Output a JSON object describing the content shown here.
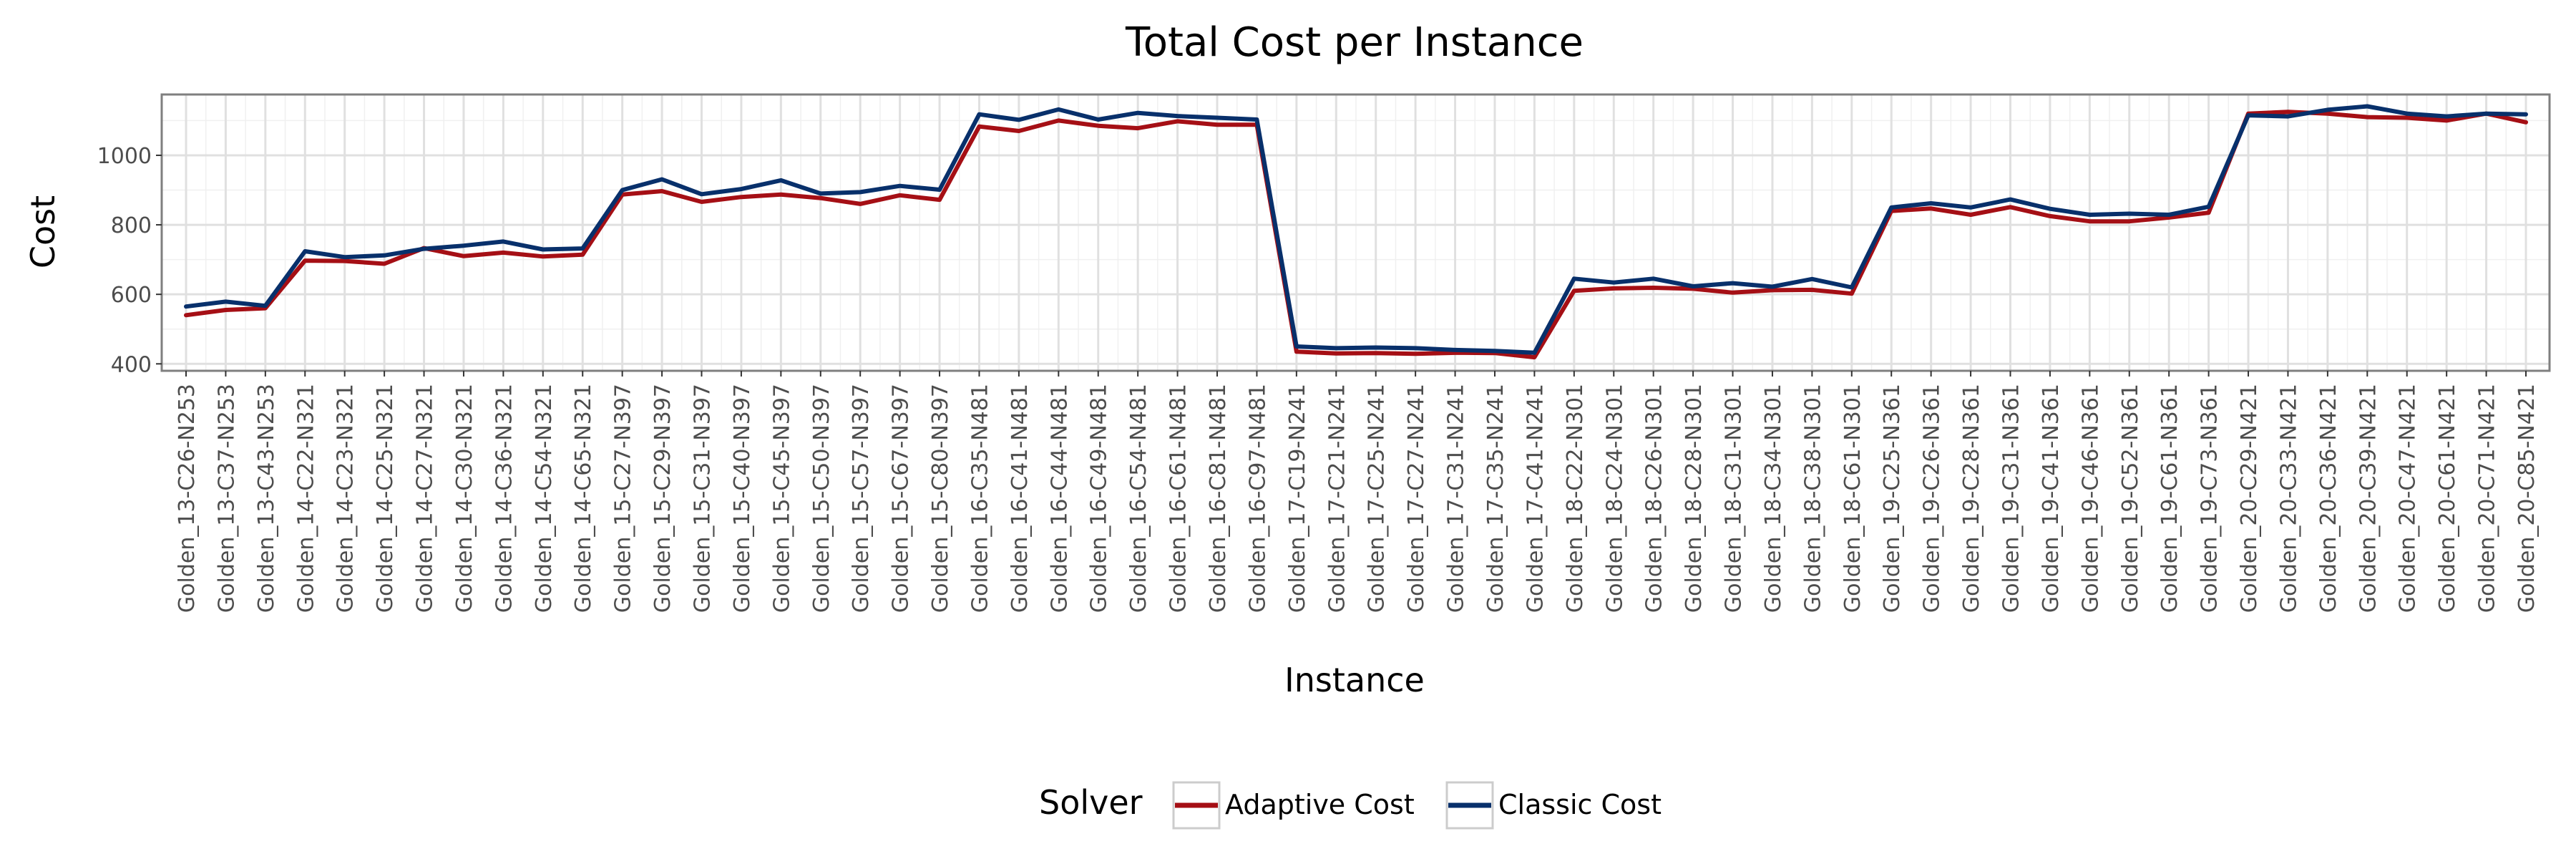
{
  "chart_data": {
    "type": "line",
    "title": "Total Cost per Instance",
    "xlabel": "Instance",
    "ylabel": "Cost",
    "ylim": [
      380,
      1175
    ],
    "yticks": [
      400,
      600,
      800,
      1000
    ],
    "grid": true,
    "legend": {
      "title": "Solver",
      "placement": "bottom"
    },
    "categories": [
      "Golden_13-C26-N253",
      "Golden_13-C37-N253",
      "Golden_13-C43-N253",
      "Golden_14-C22-N321",
      "Golden_14-C23-N321",
      "Golden_14-C25-N321",
      "Golden_14-C27-N321",
      "Golden_14-C30-N321",
      "Golden_14-C36-N321",
      "Golden_14-C54-N321",
      "Golden_14-C65-N321",
      "Golden_15-C27-N397",
      "Golden_15-C29-N397",
      "Golden_15-C31-N397",
      "Golden_15-C40-N397",
      "Golden_15-C45-N397",
      "Golden_15-C50-N397",
      "Golden_15-C57-N397",
      "Golden_15-C67-N397",
      "Golden_15-C80-N397",
      "Golden_16-C35-N481",
      "Golden_16-C41-N481",
      "Golden_16-C44-N481",
      "Golden_16-C49-N481",
      "Golden_16-C54-N481",
      "Golden_16-C61-N481",
      "Golden_16-C81-N481",
      "Golden_16-C97-N481",
      "Golden_17-C19-N241",
      "Golden_17-C21-N241",
      "Golden_17-C25-N241",
      "Golden_17-C27-N241",
      "Golden_17-C31-N241",
      "Golden_17-C35-N241",
      "Golden_17-C41-N241",
      "Golden_18-C22-N301",
      "Golden_18-C24-N301",
      "Golden_18-C26-N301",
      "Golden_18-C28-N301",
      "Golden_18-C31-N301",
      "Golden_18-C34-N301",
      "Golden_18-C38-N301",
      "Golden_18-C61-N301",
      "Golden_19-C25-N361",
      "Golden_19-C26-N361",
      "Golden_19-C28-N361",
      "Golden_19-C31-N361",
      "Golden_19-C41-N361",
      "Golden_19-C46-N361",
      "Golden_19-C52-N361",
      "Golden_19-C61-N361",
      "Golden_19-C73-N361",
      "Golden_20-C29-N421",
      "Golden_20-C33-N421",
      "Golden_20-C36-N421",
      "Golden_20-C39-N421",
      "Golden_20-C47-N421",
      "Golden_20-C61-N421",
      "Golden_20-C71-N421",
      "Golden_20-C85-N421"
    ],
    "series": [
      {
        "name": "Adaptive Cost",
        "color": "#a50f15",
        "values": [
          540,
          555,
          560,
          697,
          696,
          688,
          733,
          710,
          720,
          709,
          714,
          887,
          897,
          866,
          880,
          887,
          877,
          860,
          885,
          872,
          1083,
          1070,
          1100,
          1085,
          1078,
          1098,
          1088,
          1088,
          435,
          430,
          431,
          429,
          432,
          431,
          419,
          610,
          617,
          619,
          616,
          605,
          612,
          613,
          602,
          840,
          847,
          829,
          851,
          825,
          810,
          810,
          821,
          835,
          1120,
          1125,
          1120,
          1110,
          1108,
          1100,
          1120,
          1095
        ]
      },
      {
        "name": "Classic Cost",
        "color": "#08306b",
        "values": [
          565,
          579,
          567,
          724,
          707,
          712,
          731,
          740,
          752,
          729,
          732,
          900,
          931,
          888,
          903,
          928,
          890,
          894,
          912,
          901,
          1118,
          1102,
          1132,
          1103,
          1122,
          1113,
          1108,
          1103,
          450,
          445,
          447,
          445,
          440,
          437,
          432,
          645,
          634,
          645,
          623,
          632,
          622,
          644,
          620,
          850,
          862,
          850,
          873,
          846,
          829,
          832,
          829,
          852,
          1115,
          1112,
          1131,
          1141,
          1120,
          1112,
          1120,
          1118
        ]
      }
    ]
  }
}
